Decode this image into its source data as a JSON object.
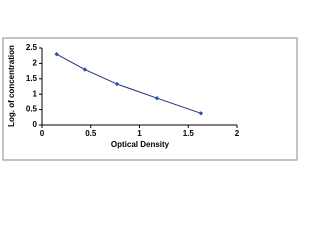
{
  "chart_data": {
    "type": "line",
    "x_label": "Optical Density",
    "y_label": "Log. of concentration",
    "x": [
      0.15,
      0.44,
      0.77,
      1.18,
      1.63
    ],
    "values": [
      2.3,
      1.8,
      1.33,
      0.87,
      0.38
    ],
    "color": "#1f2f7a",
    "marker_color": "#2b4fb8",
    "xlim": [
      0,
      2
    ],
    "xticks": [
      0,
      0.5,
      1,
      1.5,
      2
    ],
    "ylim": [
      0,
      2.5
    ],
    "yticks": [
      0,
      0.5,
      1,
      1.5,
      2,
      2.5
    ]
  }
}
